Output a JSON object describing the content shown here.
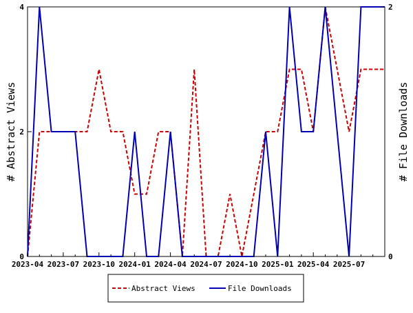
{
  "chart_data": {
    "type": "line",
    "x_axis": {
      "type": "time",
      "range": [
        "2023-04",
        "2025-10"
      ],
      "ticks": [
        "2023-04",
        "2023-07",
        "2023-10",
        "2024-01",
        "2024-04",
        "2024-07",
        "2024-10",
        "2025-01",
        "2025-04",
        "2025-07"
      ]
    },
    "y_axis_left": {
      "label": "# Abstract Views",
      "range": [
        0,
        4
      ],
      "ticks": [
        "0",
        "2",
        "4"
      ]
    },
    "y_axis_right": {
      "label": "# File Downloads",
      "range": [
        0,
        2
      ],
      "ticks": [
        "0",
        "2"
      ]
    },
    "grid": false,
    "legend": {
      "placement": "bottom-center",
      "entries": [
        "Abstract Views",
        "File Downloads"
      ]
    },
    "x": [
      "2023-04",
      "2023-05",
      "2023-06",
      "2023-07",
      "2023-08",
      "2023-09",
      "2023-10",
      "2023-11",
      "2023-12",
      "2024-01",
      "2024-02",
      "2024-03",
      "2024-04",
      "2024-05",
      "2024-06",
      "2024-07",
      "2024-08",
      "2024-09",
      "2024-10",
      "2024-11",
      "2024-12",
      "2025-01",
      "2025-02",
      "2025-03",
      "2025-04",
      "2025-05",
      "2025-06",
      "2025-07",
      "2025-08",
      "2025-09",
      "2025-10"
    ],
    "series": [
      {
        "name": "Abstract Views",
        "axis": "left",
        "color": "#cc0000",
        "style": "dashed",
        "values": [
          0,
          2,
          2,
          2,
          2,
          2,
          3,
          2,
          2,
          1,
          1,
          2,
          2,
          0,
          3,
          0,
          0,
          1,
          0,
          1,
          2,
          2,
          3,
          3,
          2,
          4,
          3,
          2,
          3,
          3,
          3
        ]
      },
      {
        "name": "File Downloads",
        "axis": "right",
        "color": "#0000b3",
        "style": "solid",
        "values": [
          0,
          2,
          1,
          1,
          1,
          0,
          0,
          0,
          0,
          1,
          0,
          0,
          1,
          0,
          0,
          0,
          0,
          0,
          0,
          0,
          1,
          0,
          2,
          1,
          1,
          2,
          1,
          0,
          2,
          2,
          2
        ]
      }
    ]
  }
}
